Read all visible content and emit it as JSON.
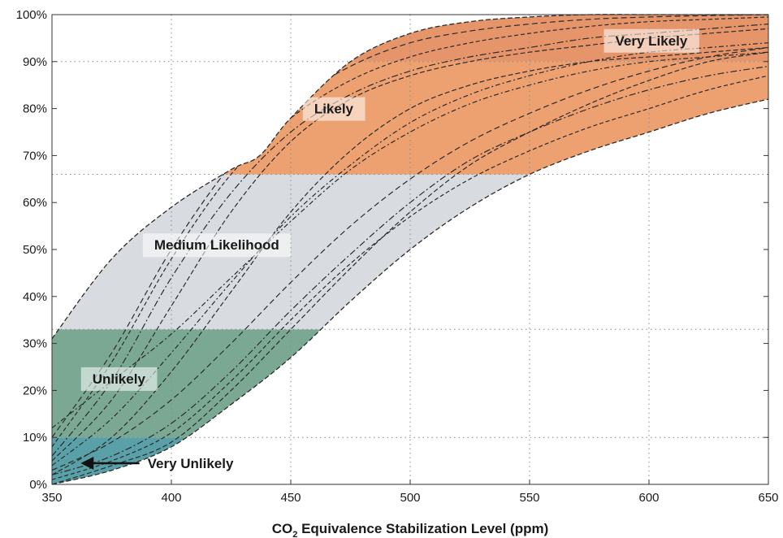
{
  "chart_data": {
    "type": "area",
    "title": "",
    "xlabel": "CO₂ Equivalence Stabilization Level (ppm)",
    "xlabel_parts": {
      "prefix": "CO",
      "subscript": "2",
      "suffix": " Equivalence Stabilization Level (ppm)"
    },
    "ylabel": "",
    "xlim": [
      350,
      650
    ],
    "ylim": [
      0,
      100
    ],
    "x_ticks": [
      350,
      400,
      450,
      500,
      550,
      600,
      650
    ],
    "x_tick_labels": [
      "350",
      "400",
      "450",
      "500",
      "550",
      "600",
      "650"
    ],
    "y_ticks": [
      0,
      10,
      20,
      30,
      40,
      50,
      60,
      70,
      80,
      90,
      100
    ],
    "y_tick_labels": [
      "0%",
      "10%",
      "20%",
      "30%",
      "40%",
      "50%",
      "60%",
      "70%",
      "80%",
      "90%",
      "100%"
    ],
    "grid": true,
    "likelihood_bands": [
      {
        "name": "Very Unlikely",
        "from": 0,
        "to": 10,
        "color": "#5aa0a8"
      },
      {
        "name": "Unlikely",
        "from": 10,
        "to": 33,
        "color": "#7aa893"
      },
      {
        "name": "Medium Likelihood",
        "from": 33,
        "to": 66,
        "color": "#d8dbe0"
      },
      {
        "name": "Likely",
        "from": 66,
        "to": 90,
        "color": "#eda070"
      },
      {
        "name": "Very Likely",
        "from": 90,
        "to": 100,
        "color": "#e6956a"
      }
    ],
    "envelope": {
      "upper": {
        "x": [
          350,
          375,
          400,
          425,
          437,
          450,
          475,
          500,
          525,
          550,
          575,
          600,
          625,
          650
        ],
        "y": [
          31,
          48,
          59,
          67,
          70,
          78,
          90,
          96,
          98.5,
          99.5,
          100,
          100,
          100,
          100
        ]
      },
      "lower": {
        "x": [
          350,
          375,
          400,
          425,
          450,
          475,
          500,
          525,
          550,
          575,
          600,
          625,
          650
        ],
        "y": [
          0,
          3,
          8,
          17,
          27,
          39,
          50,
          59,
          66,
          71,
          75,
          79,
          82
        ]
      }
    },
    "series": [
      {
        "x": [
          350,
          375,
          400,
          425,
          450,
          475,
          500,
          525,
          550,
          575,
          600,
          625,
          650
        ],
        "y": [
          0,
          4,
          9,
          20,
          33,
          46,
          58,
          68,
          75,
          81,
          86,
          90,
          92
        ]
      },
      {
        "x": [
          350,
          375,
          400,
          425,
          450,
          475,
          500,
          525,
          550,
          575,
          600,
          625,
          650
        ],
        "y": [
          2,
          6,
          13,
          24,
          37,
          49,
          60,
          69,
          75,
          80,
          84,
          87,
          89
        ]
      },
      {
        "x": [
          350,
          375,
          400,
          425,
          450,
          475,
          500,
          525,
          550,
          575,
          600,
          625,
          650
        ],
        "y": [
          1,
          5,
          11,
          22,
          35,
          47,
          57,
          65,
          71,
          76,
          80,
          84,
          87
        ]
      },
      {
        "x": [
          350,
          375,
          400,
          425,
          450,
          475,
          500,
          525,
          550,
          575,
          600,
          625,
          650
        ],
        "y": [
          3,
          9,
          18,
          30,
          43,
          55,
          65,
          73,
          79,
          84,
          88,
          91,
          93
        ]
      },
      {
        "x": [
          350,
          375,
          400,
          425,
          450,
          475,
          500,
          525,
          550,
          575,
          600,
          625,
          650
        ],
        "y": [
          4,
          14,
          28,
          43,
          57,
          68,
          77,
          83,
          87,
          90,
          92,
          93,
          94
        ]
      },
      {
        "x": [
          350,
          375,
          400,
          425,
          450,
          475,
          500,
          525,
          550,
          575,
          600,
          625,
          650
        ],
        "y": [
          5,
          18,
          38,
          58,
          73,
          82,
          87,
          90,
          92,
          93.5,
          95,
          96,
          97
        ]
      },
      {
        "x": [
          350,
          375,
          400,
          425,
          450,
          475,
          500,
          525,
          550,
          575,
          600,
          625,
          650
        ],
        "y": [
          6,
          22,
          44,
          62,
          75,
          83,
          88,
          91,
          93,
          95,
          96,
          97,
          98
        ]
      },
      {
        "x": [
          350,
          375,
          400,
          425,
          450,
          475,
          500,
          525,
          550,
          575,
          600,
          625,
          650
        ],
        "y": [
          8,
          26,
          48,
          66,
          78,
          86,
          91,
          94,
          96,
          97.5,
          98.5,
          99,
          99.5
        ]
      },
      {
        "x": [
          350,
          375,
          400,
          425,
          450,
          475,
          500,
          525,
          550,
          575,
          600,
          625,
          650
        ],
        "y": [
          10,
          28,
          50,
          68,
          81,
          89,
          94,
          96.5,
          98,
          99,
          99.5,
          99.8,
          100
        ]
      },
      {
        "x": [
          350,
          375,
          400,
          425,
          450,
          475,
          500,
          525,
          550,
          575,
          600,
          625,
          650
        ],
        "y": [
          12,
          22,
          32,
          44,
          56,
          67,
          75,
          81,
          85,
          88,
          90,
          91,
          92
        ]
      },
      {
        "x": [
          350,
          375,
          400,
          425,
          450,
          475,
          500,
          525,
          550,
          575,
          600,
          625,
          650
        ],
        "y": [
          2,
          10,
          24,
          41,
          58,
          71,
          80,
          85,
          88,
          90,
          91,
          92,
          93
        ]
      }
    ],
    "annotations": [
      {
        "text": "Very Likely",
        "x": 601,
        "y": 94.5
      },
      {
        "text": "Likely",
        "x": 468,
        "y": 80
      },
      {
        "text": "Medium Likelihood",
        "x": 419,
        "y": 51
      },
      {
        "text": "Unlikely",
        "x": 378,
        "y": 22.5
      },
      {
        "text": "Very Unlikely",
        "x": 390,
        "y": 4.5,
        "arrow_to_x": 362,
        "arrow_to_y": 4.5
      }
    ]
  }
}
